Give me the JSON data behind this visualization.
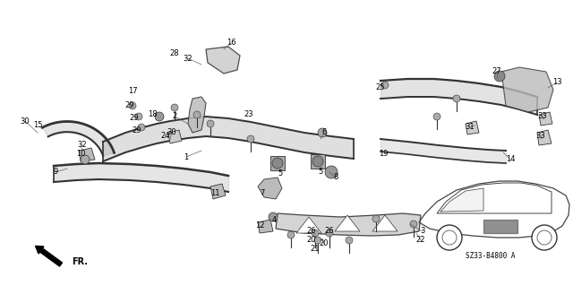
{
  "bg_color": "#ffffff",
  "diagram_code": "SZ33-B4800 A",
  "fig_width": 6.4,
  "fig_height": 3.19,
  "dpi": 100,
  "text_color": "#000000",
  "line_color": "#333333",
  "label_fontsize": 6.0
}
